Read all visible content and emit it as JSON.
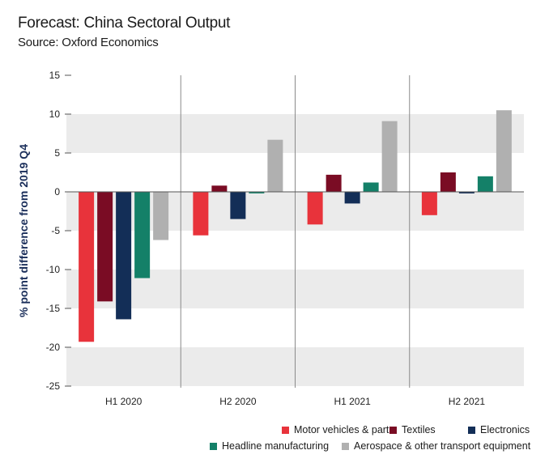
{
  "chart_data": {
    "type": "bar",
    "title": "Forecast: China Sectoral Output",
    "subtitle": "Source: Oxford Economics",
    "ylabel": "% point difference from 2019 Q4",
    "xlabel": "",
    "ylim": [
      -25,
      15
    ],
    "yticks": [
      "15",
      "10",
      "5",
      "0",
      "-5",
      "-10",
      "-15",
      "-20",
      "-25"
    ],
    "categories": [
      "H1 2020",
      "H2 2020",
      "H1 2021",
      "H2 2021"
    ],
    "series": [
      {
        "name": "Motor vehicles & parts",
        "color": "#e8333b",
        "values": [
          -19.3,
          -5.6,
          -4.2,
          -3.0
        ]
      },
      {
        "name": "Textiles",
        "color": "#7a0c24",
        "values": [
          -14.1,
          0.8,
          2.2,
          2.5
        ]
      },
      {
        "name": "Electronics",
        "color": "#132e57",
        "values": [
          -16.4,
          -3.5,
          -1.5,
          -0.2
        ]
      },
      {
        "name": "Headline manufacturing",
        "color": "#148068",
        "values": [
          -11.1,
          -0.2,
          1.2,
          2.0
        ]
      },
      {
        "name": "Aerospace & other transport equipment",
        "color": "#b0b0b0",
        "values": [
          -6.2,
          6.7,
          9.1,
          10.5
        ]
      }
    ]
  }
}
